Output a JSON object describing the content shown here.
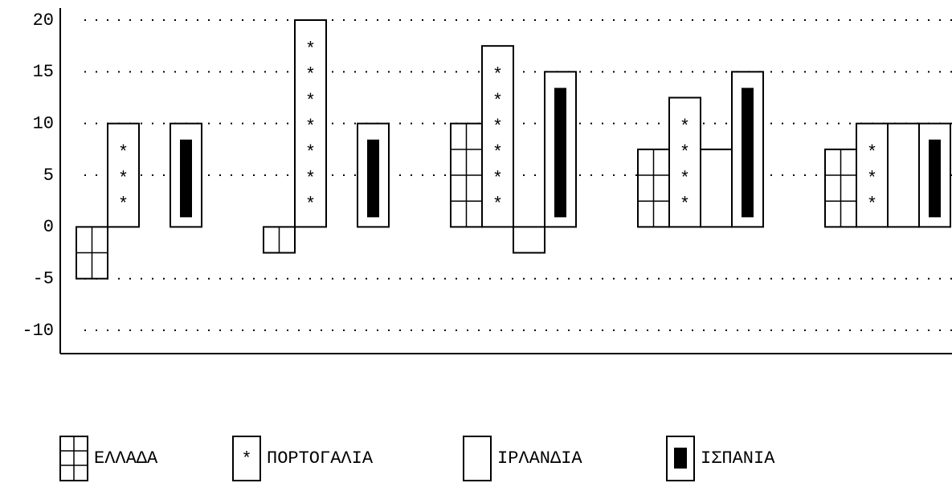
{
  "chart_data": {
    "type": "bar",
    "categories": [
      null,
      null,
      null,
      null,
      null
    ],
    "series": [
      {
        "name": "ΕΛΛΑΔΑ",
        "color": "#000000",
        "pattern": "grid",
        "values": [
          -5,
          -2.5,
          10,
          7.5,
          7.5
        ]
      },
      {
        "name": "ΠΟΡΤΟΓΑΛΙΑ",
        "color": "#000000",
        "pattern": "stars",
        "values": [
          10,
          20,
          17.5,
          12.5,
          10
        ]
      },
      {
        "name": "ΙΡΛΑΝΔΙΑ",
        "color": "#000000",
        "pattern": "none",
        "values": [
          0,
          0,
          -2.5,
          7.5,
          10
        ]
      },
      {
        "name": "ΙΣΠΑΝΙΑ",
        "color": "#000000",
        "pattern": "inset",
        "values": [
          10,
          10,
          15,
          15,
          10
        ]
      }
    ],
    "ylim": [
      -12.25,
      20
    ],
    "yticks": [
      -10,
      -5,
      0,
      5,
      10,
      15,
      20
    ],
    "grid": true,
    "legend": "bottom"
  }
}
